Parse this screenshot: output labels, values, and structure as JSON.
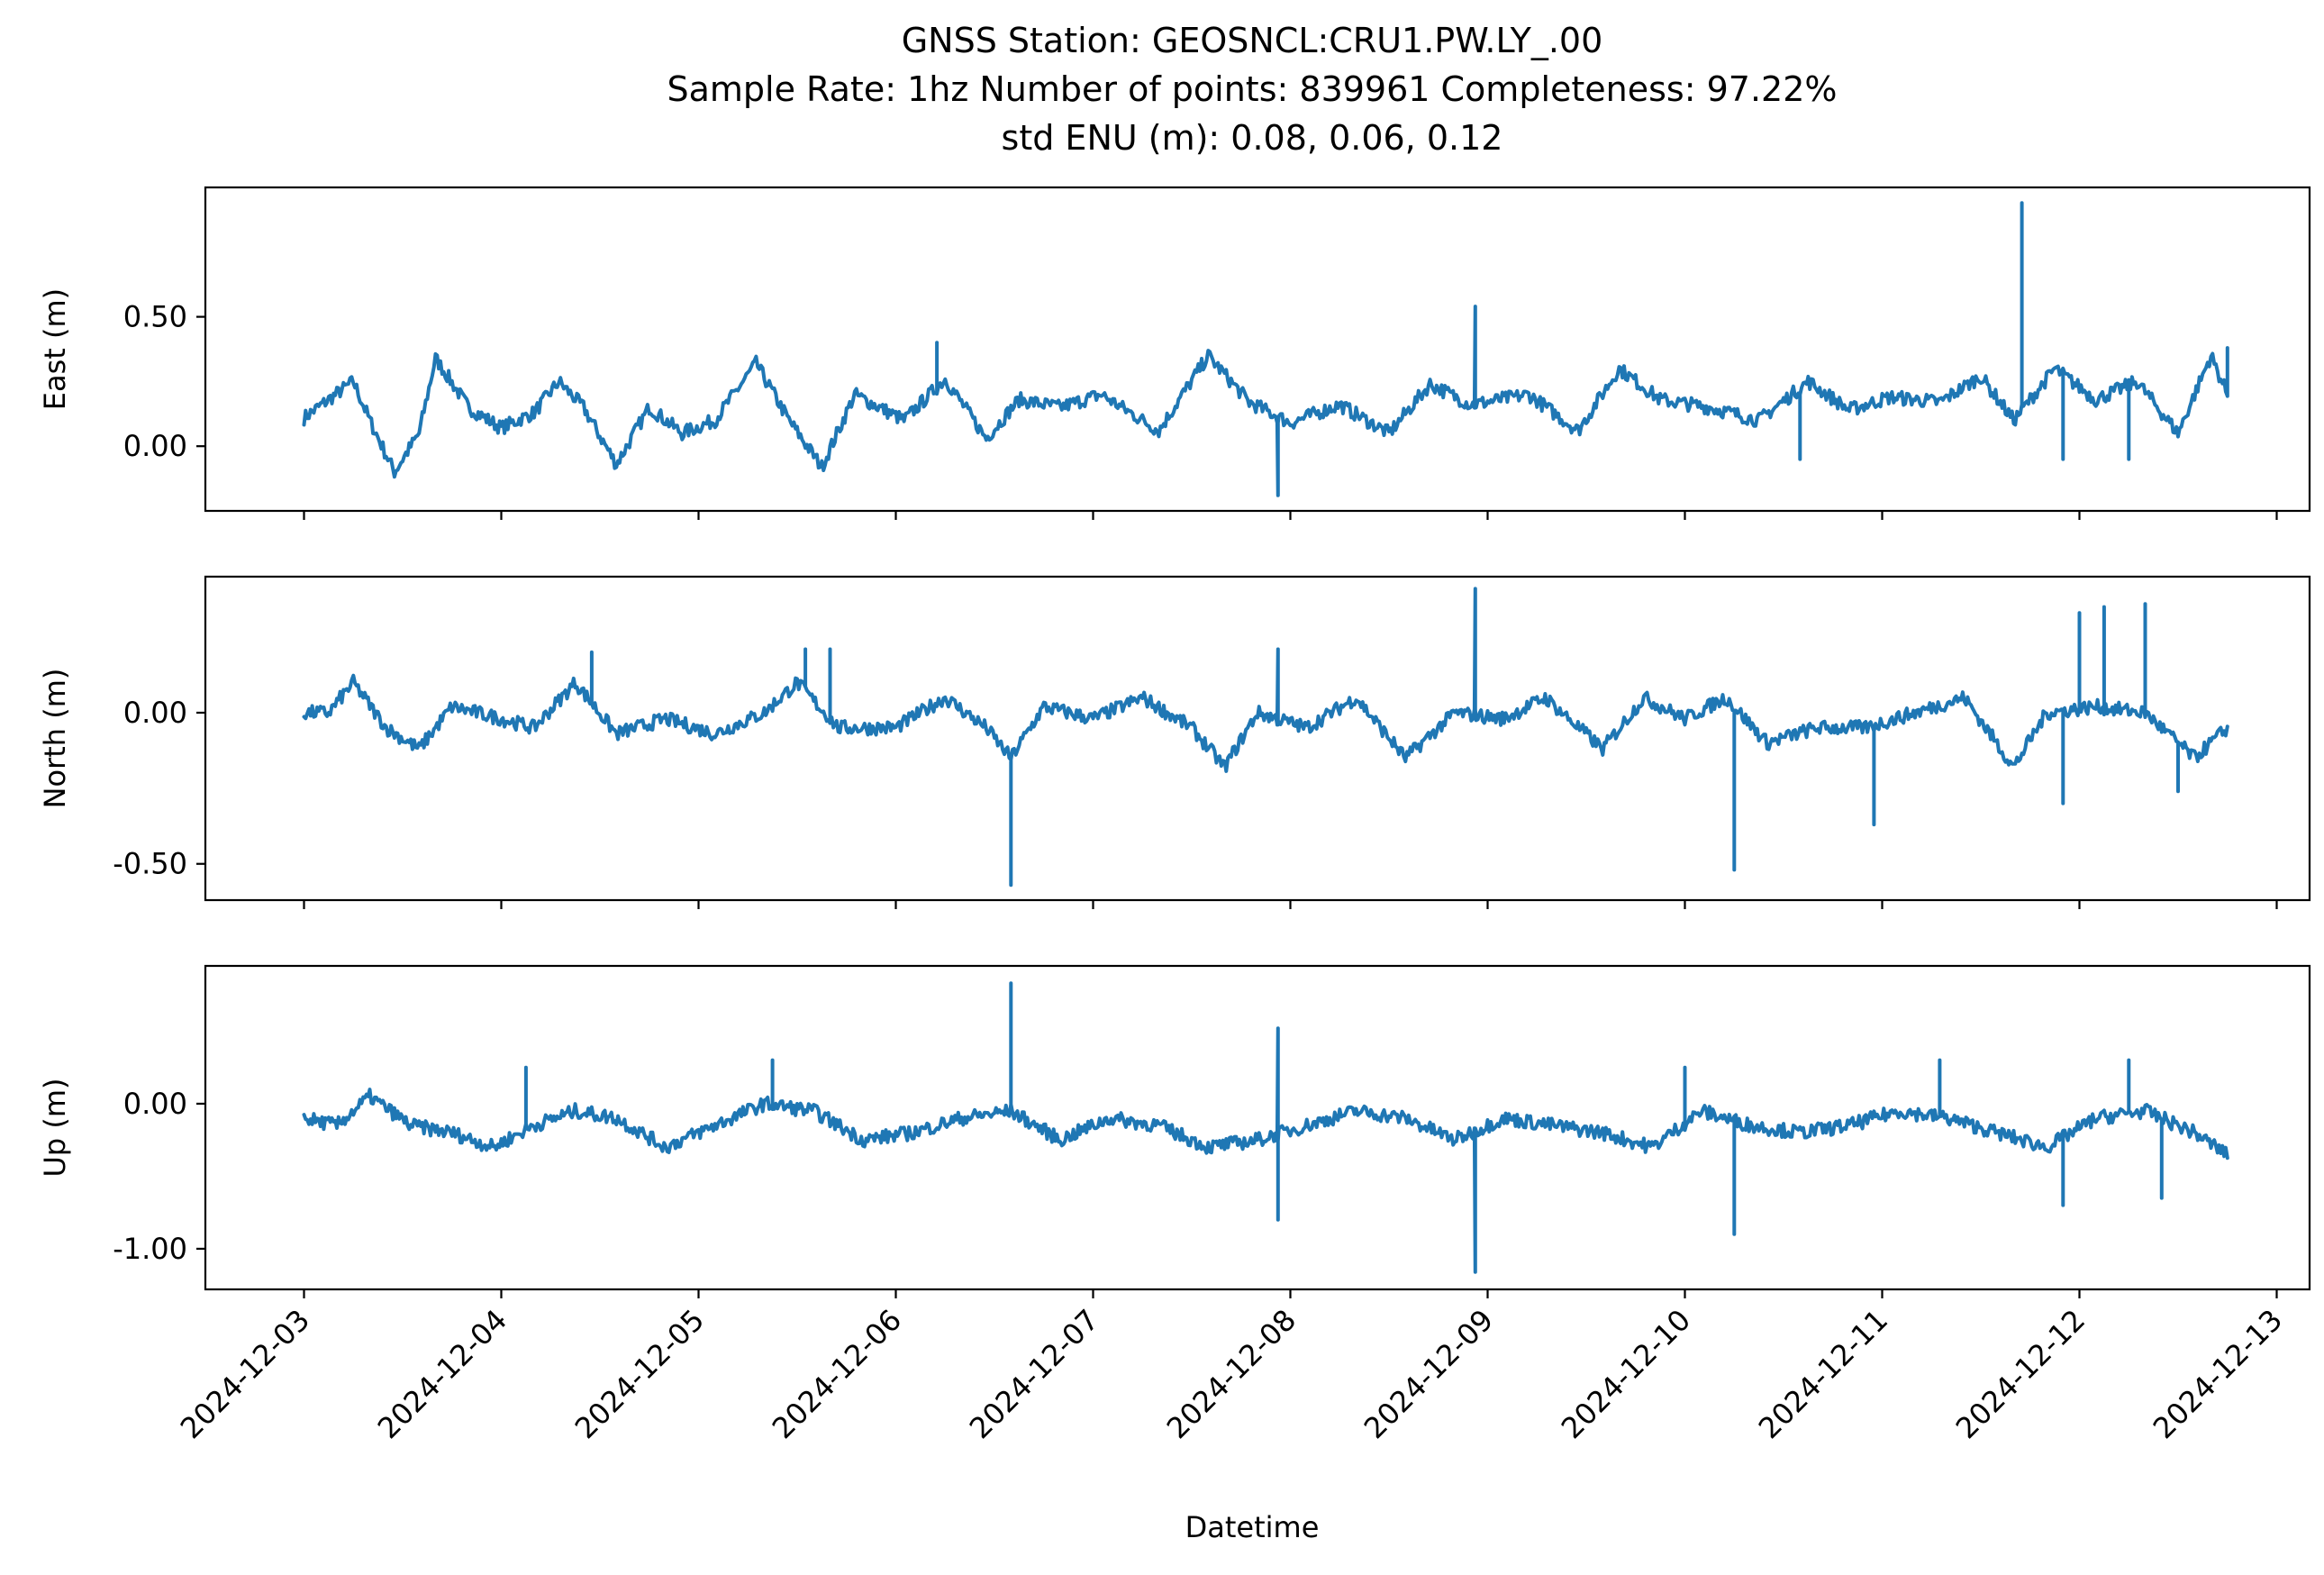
{
  "chart_data": {
    "type": "line",
    "title_lines": [
      "GNSS Station: GEOSNCL:CRU1.PW.LY_.00",
      "Sample Rate: 1hz   Number of points: 839961    Completeness:  97.22%",
      "std ENU (m):  0.08, 0.06, 0.12"
    ],
    "xlabel": "Datetime",
    "x_tick_labels": [
      "2024-12-03",
      "2024-12-04",
      "2024-12-05",
      "2024-12-06",
      "2024-12-07",
      "2024-12-08",
      "2024-12-09",
      "2024-12-10",
      "2024-12-11",
      "2024-12-12",
      "2024-12-13"
    ],
    "x_range": [
      "2024-12-02T12:00",
      "2024-12-13T04:00"
    ],
    "line_color": "#1f77b4",
    "panels": [
      {
        "ylabel": "East (m)",
        "ylim": [
          -0.25,
          1.0
        ],
        "yticks": [
          0.0,
          0.5
        ],
        "ytick_labels": [
          "0.00",
          "0.50"
        ],
        "base": [
          [
            "2024-12-03T00:00",
            0.11
          ],
          [
            "2024-12-03T03:00",
            0.18
          ],
          [
            "2024-12-03T06:00",
            0.25
          ],
          [
            "2024-12-03T08:00",
            0.1
          ],
          [
            "2024-12-03T11:00",
            -0.1
          ],
          [
            "2024-12-03T14:00",
            0.05
          ],
          [
            "2024-12-03T16:00",
            0.34
          ],
          [
            "2024-12-03T20:00",
            0.15
          ],
          [
            "2024-12-04T00:00",
            0.07
          ],
          [
            "2024-12-04T04:00",
            0.13
          ],
          [
            "2024-12-04T07:00",
            0.25
          ],
          [
            "2024-12-04T10:00",
            0.15
          ],
          [
            "2024-12-04T14:00",
            -0.07
          ],
          [
            "2024-12-04T18:00",
            0.15
          ],
          [
            "2024-12-04T22:00",
            0.05
          ],
          [
            "2024-12-05T02:00",
            0.1
          ],
          [
            "2024-12-05T07:00",
            0.32
          ],
          [
            "2024-12-05T11:00",
            0.1
          ],
          [
            "2024-12-05T15:00",
            -0.08
          ],
          [
            "2024-12-05T19:00",
            0.2
          ],
          [
            "2024-12-06T01:00",
            0.1
          ],
          [
            "2024-12-06T06:00",
            0.26
          ],
          [
            "2024-12-06T11:00",
            0.03
          ],
          [
            "2024-12-06T15:00",
            0.18
          ],
          [
            "2024-12-06T20:00",
            0.15
          ],
          [
            "2024-12-07T01:00",
            0.2
          ],
          [
            "2024-12-07T08:00",
            0.06
          ],
          [
            "2024-12-07T14:00",
            0.35
          ],
          [
            "2024-12-07T19:00",
            0.17
          ],
          [
            "2024-12-08T00:00",
            0.09
          ],
          [
            "2024-12-08T06:00",
            0.16
          ],
          [
            "2024-12-08T12:00",
            0.05
          ],
          [
            "2024-12-08T17:00",
            0.24
          ],
          [
            "2024-12-08T22:00",
            0.16
          ],
          [
            "2024-12-09T05:00",
            0.2
          ],
          [
            "2024-12-09T11:00",
            0.06
          ],
          [
            "2024-12-09T16:00",
            0.3
          ],
          [
            "2024-12-09T21:00",
            0.18
          ],
          [
            "2024-12-10T03:00",
            0.15
          ],
          [
            "2024-12-10T09:00",
            0.1
          ],
          [
            "2024-12-10T15:00",
            0.25
          ],
          [
            "2024-12-10T20:00",
            0.14
          ],
          [
            "2024-12-11T01:00",
            0.19
          ],
          [
            "2024-12-11T07:00",
            0.17
          ],
          [
            "2024-12-11T12:00",
            0.27
          ],
          [
            "2024-12-11T16:00",
            0.1
          ],
          [
            "2024-12-11T21:00",
            0.3
          ],
          [
            "2024-12-12T02:00",
            0.18
          ],
          [
            "2024-12-12T07:00",
            0.25
          ],
          [
            "2024-12-12T12:00",
            0.05
          ],
          [
            "2024-12-12T16:00",
            0.35
          ],
          [
            "2024-12-12T18:00",
            0.2
          ]
        ],
        "spikes": [
          [
            "2024-12-07T22:30",
            -0.19
          ],
          [
            "2024-12-08T22:30",
            0.54
          ],
          [
            "2024-12-11T17:00",
            0.94
          ],
          [
            "2024-12-06T05:00",
            0.4
          ],
          [
            "2024-12-12T06:00",
            -0.05
          ],
          [
            "2024-12-12T18:00",
            0.38
          ],
          [
            "2024-12-11T22:00",
            -0.05
          ],
          [
            "2024-12-10T14:00",
            -0.05
          ]
        ]
      },
      {
        "ylabel": "North (m)",
        "ylim": [
          -0.62,
          0.45
        ],
        "yticks": [
          0.0,
          -0.5
        ],
        "ytick_labels": [
          "0.00",
          "-0.50"
        ],
        "base": [
          [
            "2024-12-03T00:00",
            0.0
          ],
          [
            "2024-12-03T03:00",
            0.0
          ],
          [
            "2024-12-03T06:00",
            0.1
          ],
          [
            "2024-12-03T10:00",
            -0.05
          ],
          [
            "2024-12-03T14:00",
            -0.12
          ],
          [
            "2024-12-03T18:00",
            0.02
          ],
          [
            "2024-12-04T00:00",
            -0.02
          ],
          [
            "2024-12-04T04:00",
            -0.05
          ],
          [
            "2024-12-04T09:00",
            0.1
          ],
          [
            "2024-12-04T14:00",
            -0.07
          ],
          [
            "2024-12-04T20:00",
            -0.02
          ],
          [
            "2024-12-05T02:00",
            -0.07
          ],
          [
            "2024-12-05T08:00",
            0.0
          ],
          [
            "2024-12-05T12:00",
            0.1
          ],
          [
            "2024-12-05T17:00",
            -0.05
          ],
          [
            "2024-12-06T00:00",
            -0.05
          ],
          [
            "2024-12-06T06:00",
            0.05
          ],
          [
            "2024-12-06T11:00",
            -0.05
          ],
          [
            "2024-12-06T14:00",
            -0.15
          ],
          [
            "2024-12-06T18:00",
            0.02
          ],
          [
            "2024-12-07T00:00",
            -0.02
          ],
          [
            "2024-12-07T06:00",
            0.05
          ],
          [
            "2024-12-07T12:00",
            -0.05
          ],
          [
            "2024-12-07T16:00",
            -0.18
          ],
          [
            "2024-12-07T20:00",
            0.0
          ],
          [
            "2024-12-08T02:00",
            -0.05
          ],
          [
            "2024-12-08T08:00",
            0.05
          ],
          [
            "2024-12-08T14:00",
            -0.15
          ],
          [
            "2024-12-08T20:00",
            0.0
          ],
          [
            "2024-12-09T02:00",
            -0.02
          ],
          [
            "2024-12-09T07:00",
            0.05
          ],
          [
            "2024-12-09T14:00",
            -0.12
          ],
          [
            "2024-12-09T19:00",
            0.05
          ],
          [
            "2024-12-10T00:00",
            -0.02
          ],
          [
            "2024-12-10T05:00",
            0.05
          ],
          [
            "2024-12-10T10:00",
            -0.1
          ],
          [
            "2024-12-10T16:00",
            -0.05
          ],
          [
            "2024-12-10T22:00",
            -0.05
          ],
          [
            "2024-12-11T04:00",
            0.0
          ],
          [
            "2024-12-11T10:00",
            0.05
          ],
          [
            "2024-12-11T16:00",
            -0.18
          ],
          [
            "2024-12-11T20:00",
            0.0
          ],
          [
            "2024-12-12T02:00",
            0.02
          ],
          [
            "2024-12-12T08:00",
            0.0
          ],
          [
            "2024-12-12T14:00",
            -0.15
          ],
          [
            "2024-12-12T18:00",
            -0.05
          ]
        ],
        "spikes": [
          [
            "2024-12-06T14:00",
            -0.57
          ],
          [
            "2024-12-08T22:30",
            0.41
          ],
          [
            "2024-12-10T06:00",
            -0.52
          ],
          [
            "2024-12-12T03:00",
            0.35
          ],
          [
            "2024-12-12T08:00",
            0.36
          ],
          [
            "2024-12-12T12:00",
            -0.26
          ],
          [
            "2024-12-07T22:30",
            0.21
          ],
          [
            "2024-12-05T13:00",
            0.21
          ],
          [
            "2024-12-05T16:00",
            0.21
          ],
          [
            "2024-12-12T00:00",
            0.33
          ],
          [
            "2024-12-04T11:00",
            0.2
          ],
          [
            "2024-12-11T22:00",
            -0.3
          ],
          [
            "2024-12-10T23:00",
            -0.37
          ]
        ]
      },
      {
        "ylabel": "Up (m)",
        "ylim": [
          -1.28,
          0.95
        ],
        "yticks": [
          0.0,
          -1.0
        ],
        "ytick_labels": [
          "0.00",
          "-1.00"
        ],
        "base": [
          [
            "2024-12-03T00:00",
            -0.1
          ],
          [
            "2024-12-03T04:00",
            -0.15
          ],
          [
            "2024-12-03T08:00",
            0.05
          ],
          [
            "2024-12-03T13:00",
            -0.15
          ],
          [
            "2024-12-03T18:00",
            -0.2
          ],
          [
            "2024-12-03T23:00",
            -0.3
          ],
          [
            "2024-12-04T04:00",
            -0.15
          ],
          [
            "2024-12-04T09:00",
            -0.05
          ],
          [
            "2024-12-04T14:00",
            -0.1
          ],
          [
            "2024-12-04T20:00",
            -0.3
          ],
          [
            "2024-12-05T02:00",
            -0.15
          ],
          [
            "2024-12-05T08:00",
            0.0
          ],
          [
            "2024-12-05T14:00",
            -0.05
          ],
          [
            "2024-12-05T20:00",
            -0.25
          ],
          [
            "2024-12-06T02:00",
            -0.2
          ],
          [
            "2024-12-06T08:00",
            -0.1
          ],
          [
            "2024-12-06T14:00",
            -0.05
          ],
          [
            "2024-12-06T20:00",
            -0.25
          ],
          [
            "2024-12-07T02:00",
            -0.1
          ],
          [
            "2024-12-07T08:00",
            -0.15
          ],
          [
            "2024-12-07T14:00",
            -0.3
          ],
          [
            "2024-12-07T20:00",
            -0.25
          ],
          [
            "2024-12-08T02:00",
            -0.15
          ],
          [
            "2024-12-08T08:00",
            -0.05
          ],
          [
            "2024-12-08T14:00",
            -0.1
          ],
          [
            "2024-12-08T20:00",
            -0.25
          ],
          [
            "2024-12-09T02:00",
            -0.1
          ],
          [
            "2024-12-09T08:00",
            -0.15
          ],
          [
            "2024-12-09T14:00",
            -0.2
          ],
          [
            "2024-12-09T20:00",
            -0.3
          ],
          [
            "2024-12-10T02:00",
            -0.05
          ],
          [
            "2024-12-10T08:00",
            -0.15
          ],
          [
            "2024-12-10T14:00",
            -0.2
          ],
          [
            "2024-12-10T20:00",
            -0.15
          ],
          [
            "2024-12-11T02:00",
            -0.05
          ],
          [
            "2024-12-11T08:00",
            -0.1
          ],
          [
            "2024-12-11T14:00",
            -0.2
          ],
          [
            "2024-12-11T20:00",
            -0.3
          ],
          [
            "2024-12-12T02:00",
            -0.1
          ],
          [
            "2024-12-12T08:00",
            -0.05
          ],
          [
            "2024-12-12T14:00",
            -0.2
          ],
          [
            "2024-12-12T18:00",
            -0.35
          ]
        ],
        "spikes": [
          [
            "2024-12-06T14:00",
            0.83
          ],
          [
            "2024-12-07T22:30",
            0.52
          ],
          [
            "2024-12-07T22:30",
            -0.8
          ],
          [
            "2024-12-08T22:30",
            -1.16
          ],
          [
            "2024-12-10T06:00",
            -0.9
          ],
          [
            "2024-12-11T22:00",
            -0.7
          ],
          [
            "2024-12-12T06:00",
            0.3
          ],
          [
            "2024-12-12T10:00",
            -0.65
          ],
          [
            "2024-12-05T09:00",
            0.3
          ],
          [
            "2024-12-04T03:00",
            0.25
          ],
          [
            "2024-12-10T00:00",
            0.25
          ],
          [
            "2024-12-11T07:00",
            0.3
          ]
        ]
      }
    ]
  }
}
